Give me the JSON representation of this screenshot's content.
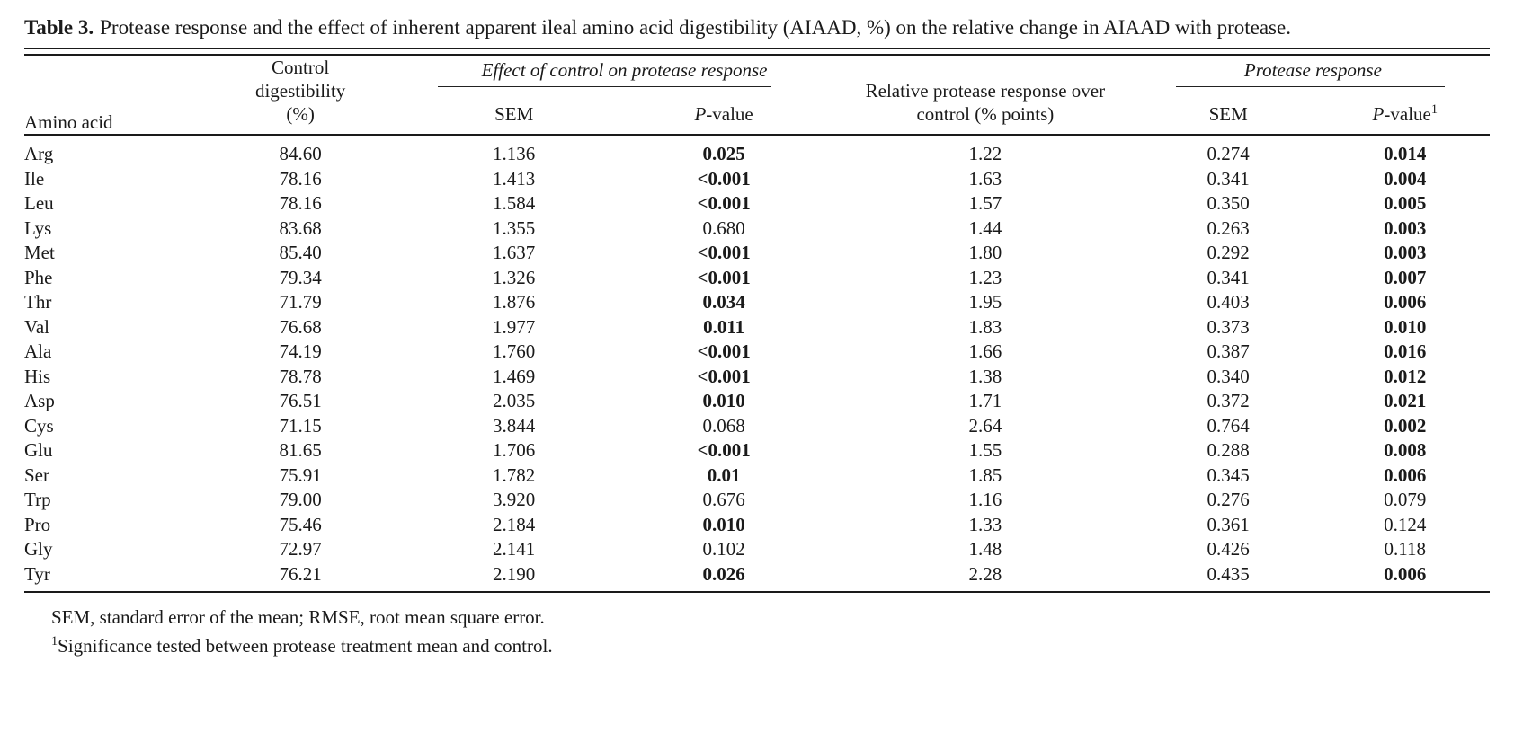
{
  "title": {
    "label": "Table 3.",
    "text": "Protease response and the effect of inherent apparent ileal amino acid digestibility (AIAAD, %) on the relative change in AIAAD with protease."
  },
  "table": {
    "column_groups": {
      "effect_of_control": "Effect of control on protease response",
      "protease_response": "Protease response"
    },
    "headers": {
      "amino_acid": "Amino acid",
      "control_digestibility": "Control digestibility (%)",
      "sem": "SEM",
      "p_letter": "P",
      "p_suffix": "-value",
      "p2_sup": "1",
      "relative": "Relative protease response over control (% points)"
    },
    "rows": [
      {
        "aa": "Arg",
        "control": "84.60",
        "sem1": "1.136",
        "p1": "0.025",
        "p1_bold": true,
        "rel": "1.22",
        "sem2": "0.274",
        "p2": "0.014",
        "p2_bold": true
      },
      {
        "aa": "Ile",
        "control": "78.16",
        "sem1": "1.413",
        "p1": "<0.001",
        "p1_bold": true,
        "rel": "1.63",
        "sem2": "0.341",
        "p2": "0.004",
        "p2_bold": true
      },
      {
        "aa": "Leu",
        "control": "78.16",
        "sem1": "1.584",
        "p1": "<0.001",
        "p1_bold": true,
        "rel": "1.57",
        "sem2": "0.350",
        "p2": "0.005",
        "p2_bold": true
      },
      {
        "aa": "Lys",
        "control": "83.68",
        "sem1": "1.355",
        "p1": "0.680",
        "p1_bold": false,
        "rel": "1.44",
        "sem2": "0.263",
        "p2": "0.003",
        "p2_bold": true
      },
      {
        "aa": "Met",
        "control": "85.40",
        "sem1": "1.637",
        "p1": "<0.001",
        "p1_bold": true,
        "rel": "1.80",
        "sem2": "0.292",
        "p2": "0.003",
        "p2_bold": true
      },
      {
        "aa": "Phe",
        "control": "79.34",
        "sem1": "1.326",
        "p1": "<0.001",
        "p1_bold": true,
        "rel": "1.23",
        "sem2": "0.341",
        "p2": "0.007",
        "p2_bold": true
      },
      {
        "aa": "Thr",
        "control": "71.79",
        "sem1": "1.876",
        "p1": "0.034",
        "p1_bold": true,
        "rel": "1.95",
        "sem2": "0.403",
        "p2": "0.006",
        "p2_bold": true
      },
      {
        "aa": "Val",
        "control": "76.68",
        "sem1": "1.977",
        "p1": "0.011",
        "p1_bold": true,
        "rel": "1.83",
        "sem2": "0.373",
        "p2": "0.010",
        "p2_bold": true
      },
      {
        "aa": "Ala",
        "control": "74.19",
        "sem1": "1.760",
        "p1": "<0.001",
        "p1_bold": true,
        "rel": "1.66",
        "sem2": "0.387",
        "p2": "0.016",
        "p2_bold": true
      },
      {
        "aa": "His",
        "control": "78.78",
        "sem1": "1.469",
        "p1": "<0.001",
        "p1_bold": true,
        "rel": "1.38",
        "sem2": "0.340",
        "p2": "0.012",
        "p2_bold": true
      },
      {
        "aa": "Asp",
        "control": "76.51",
        "sem1": "2.035",
        "p1": "0.010",
        "p1_bold": true,
        "rel": "1.71",
        "sem2": "0.372",
        "p2": "0.021",
        "p2_bold": true
      },
      {
        "aa": "Cys",
        "control": "71.15",
        "sem1": "3.844",
        "p1": "0.068",
        "p1_bold": false,
        "rel": "2.64",
        "sem2": "0.764",
        "p2": "0.002",
        "p2_bold": true
      },
      {
        "aa": "Glu",
        "control": "81.65",
        "sem1": "1.706",
        "p1": "<0.001",
        "p1_bold": true,
        "rel": "1.55",
        "sem2": "0.288",
        "p2": "0.008",
        "p2_bold": true
      },
      {
        "aa": "Ser",
        "control": "75.91",
        "sem1": "1.782",
        "p1": "0.01",
        "p1_bold": true,
        "rel": "1.85",
        "sem2": "0.345",
        "p2": "0.006",
        "p2_bold": true
      },
      {
        "aa": "Trp",
        "control": "79.00",
        "sem1": "3.920",
        "p1": "0.676",
        "p1_bold": false,
        "rel": "1.16",
        "sem2": "0.276",
        "p2": "0.079",
        "p2_bold": false
      },
      {
        "aa": "Pro",
        "control": "75.46",
        "sem1": "2.184",
        "p1": "0.010",
        "p1_bold": true,
        "rel": "1.33",
        "sem2": "0.361",
        "p2": "0.124",
        "p2_bold": false
      },
      {
        "aa": "Gly",
        "control": "72.97",
        "sem1": "2.141",
        "p1": "0.102",
        "p1_bold": false,
        "rel": "1.48",
        "sem2": "0.426",
        "p2": "0.118",
        "p2_bold": false
      },
      {
        "aa": "Tyr",
        "control": "76.21",
        "sem1": "2.190",
        "p1": "0.026",
        "p1_bold": true,
        "rel": "2.28",
        "sem2": "0.435",
        "p2": "0.006",
        "p2_bold": true
      }
    ]
  },
  "footnotes": [
    {
      "sup": "",
      "text": "SEM, standard error of the mean; RMSE, root mean square error."
    },
    {
      "sup": "1",
      "text": "Significance tested between protease treatment mean and control."
    }
  ]
}
